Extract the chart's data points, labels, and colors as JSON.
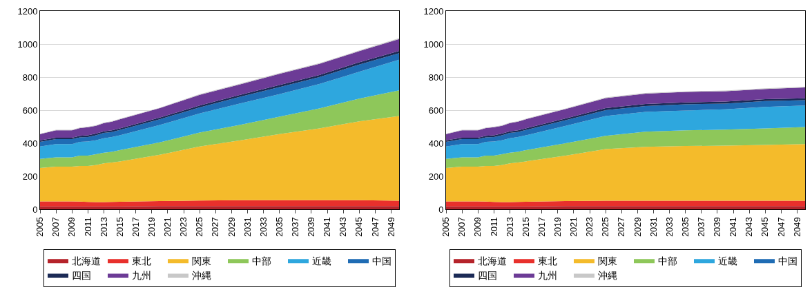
{
  "chart_data": [
    {
      "type": "area",
      "stacked": true,
      "x": [
        2005,
        2007,
        2009,
        2010,
        2011,
        2012,
        2013,
        2014,
        2015,
        2020,
        2025,
        2030,
        2035,
        2040,
        2045,
        2050
      ],
      "xlim": [
        2005,
        2050
      ],
      "xticks": [
        2005,
        2007,
        2009,
        2011,
        2013,
        2015,
        2017,
        2019,
        2021,
        2023,
        2025,
        2027,
        2029,
        2031,
        2033,
        2035,
        2037,
        2039,
        2041,
        2043,
        2045,
        2047,
        2049
      ],
      "ylim": [
        0,
        1200
      ],
      "yticks": [
        0,
        200,
        400,
        600,
        800,
        1000,
        1200
      ],
      "grid": "y",
      "legend": "bottom",
      "series": [
        {
          "name": "北海道",
          "color": "#b5232a",
          "values": [
            18,
            18,
            18,
            18,
            18,
            18,
            18,
            18,
            18,
            20,
            20,
            20,
            20,
            20,
            20,
            20
          ]
        },
        {
          "name": "東北",
          "color": "#e8302c",
          "values": [
            30,
            30,
            30,
            29,
            27,
            26,
            26,
            27,
            28,
            30,
            33,
            35,
            35,
            35,
            35,
            32
          ]
        },
        {
          "name": "関東",
          "color": "#f4bb2b",
          "values": [
            202,
            210,
            210,
            215,
            218,
            224,
            234,
            238,
            244,
            280,
            327,
            362,
            400,
            435,
            477,
            513
          ]
        },
        {
          "name": "中部",
          "color": "#8ec75a",
          "values": [
            55,
            57,
            57,
            63,
            62,
            65,
            65,
            65,
            68,
            75,
            85,
            93,
            105,
            120,
            138,
            155
          ]
        },
        {
          "name": "近畿",
          "color": "#2ea7de",
          "values": [
            75,
            80,
            80,
            83,
            85,
            85,
            87,
            89,
            90,
            105,
            115,
            130,
            137,
            148,
            162,
            185
          ]
        },
        {
          "name": "中国",
          "color": "#1f6cb4",
          "values": [
            28,
            30,
            30,
            27,
            28,
            30,
            32,
            31,
            32,
            35,
            37,
            40,
            43,
            42,
            44,
            40
          ]
        },
        {
          "name": "四国",
          "color": "#1b2a56",
          "values": [
            10,
            8,
            8,
            10,
            10,
            10,
            10,
            10,
            10,
            10,
            11,
            12,
            12,
            13,
            14,
            13
          ]
        },
        {
          "name": "九州",
          "color": "#6c3b96",
          "values": [
            37,
            45,
            45,
            47,
            49,
            47,
            50,
            52,
            55,
            57,
            65,
            63,
            68,
            67,
            67,
            72
          ]
        },
        {
          "name": "沖縄",
          "color": "#c8c8c8",
          "values": [
            2,
            3,
            3,
            3,
            3,
            3,
            3,
            3,
            3,
            3,
            4,
            4,
            4,
            4,
            4,
            5
          ]
        }
      ]
    },
    {
      "type": "area",
      "stacked": true,
      "x": [
        2005,
        2007,
        2009,
        2010,
        2011,
        2012,
        2013,
        2014,
        2015,
        2020,
        2025,
        2030,
        2035,
        2040,
        2045,
        2050
      ],
      "xlim": [
        2005,
        2050
      ],
      "xticks": [
        2005,
        2007,
        2009,
        2011,
        2013,
        2015,
        2017,
        2019,
        2021,
        2023,
        2025,
        2027,
        2029,
        2031,
        2033,
        2035,
        2037,
        2039,
        2041,
        2043,
        2045,
        2047,
        2049
      ],
      "ylim": [
        0,
        1200
      ],
      "yticks": [
        0,
        200,
        400,
        600,
        800,
        1000,
        1200
      ],
      "grid": "y",
      "legend": "bottom",
      "series": [
        {
          "name": "北海道",
          "color": "#b5232a",
          "values": [
            18,
            18,
            18,
            18,
            18,
            18,
            18,
            18,
            18,
            20,
            20,
            20,
            20,
            20,
            20,
            20
          ]
        },
        {
          "name": "東北",
          "color": "#e8302c",
          "values": [
            30,
            30,
            30,
            29,
            27,
            26,
            26,
            27,
            28,
            30,
            32,
            32,
            32,
            32,
            32,
            32
          ]
        },
        {
          "name": "関東",
          "color": "#f4bb2b",
          "values": [
            202,
            210,
            210,
            215,
            218,
            224,
            234,
            238,
            244,
            275,
            313,
            326,
            331,
            333,
            338,
            343
          ]
        },
        {
          "name": "中部",
          "color": "#8ec75a",
          "values": [
            55,
            57,
            57,
            63,
            62,
            65,
            65,
            65,
            68,
            75,
            80,
            92,
            95,
            97,
            100,
            103
          ]
        },
        {
          "name": "近畿",
          "color": "#2ea7de",
          "values": [
            75,
            80,
            80,
            83,
            85,
            85,
            87,
            89,
            90,
            105,
            120,
            120,
            120,
            123,
            130,
            130
          ]
        },
        {
          "name": "中国",
          "color": "#1f6cb4",
          "values": [
            28,
            30,
            30,
            27,
            28,
            30,
            32,
            31,
            32,
            35,
            35,
            35,
            37,
            35,
            35,
            32
          ]
        },
        {
          "name": "四国",
          "color": "#1b2a56",
          "values": [
            10,
            8,
            8,
            10,
            10,
            10,
            10,
            10,
            10,
            10,
            12,
            12,
            12,
            12,
            12,
            12
          ]
        },
        {
          "name": "九州",
          "color": "#6c3b96",
          "values": [
            37,
            45,
            45,
            47,
            49,
            47,
            50,
            52,
            55,
            57,
            61,
            63,
            63,
            63,
            61,
            66
          ]
        },
        {
          "name": "沖縄",
          "color": "#c8c8c8",
          "values": [
            2,
            3,
            3,
            3,
            3,
            3,
            3,
            3,
            3,
            3,
            4,
            4,
            4,
            4,
            4,
            4
          ]
        }
      ]
    }
  ]
}
